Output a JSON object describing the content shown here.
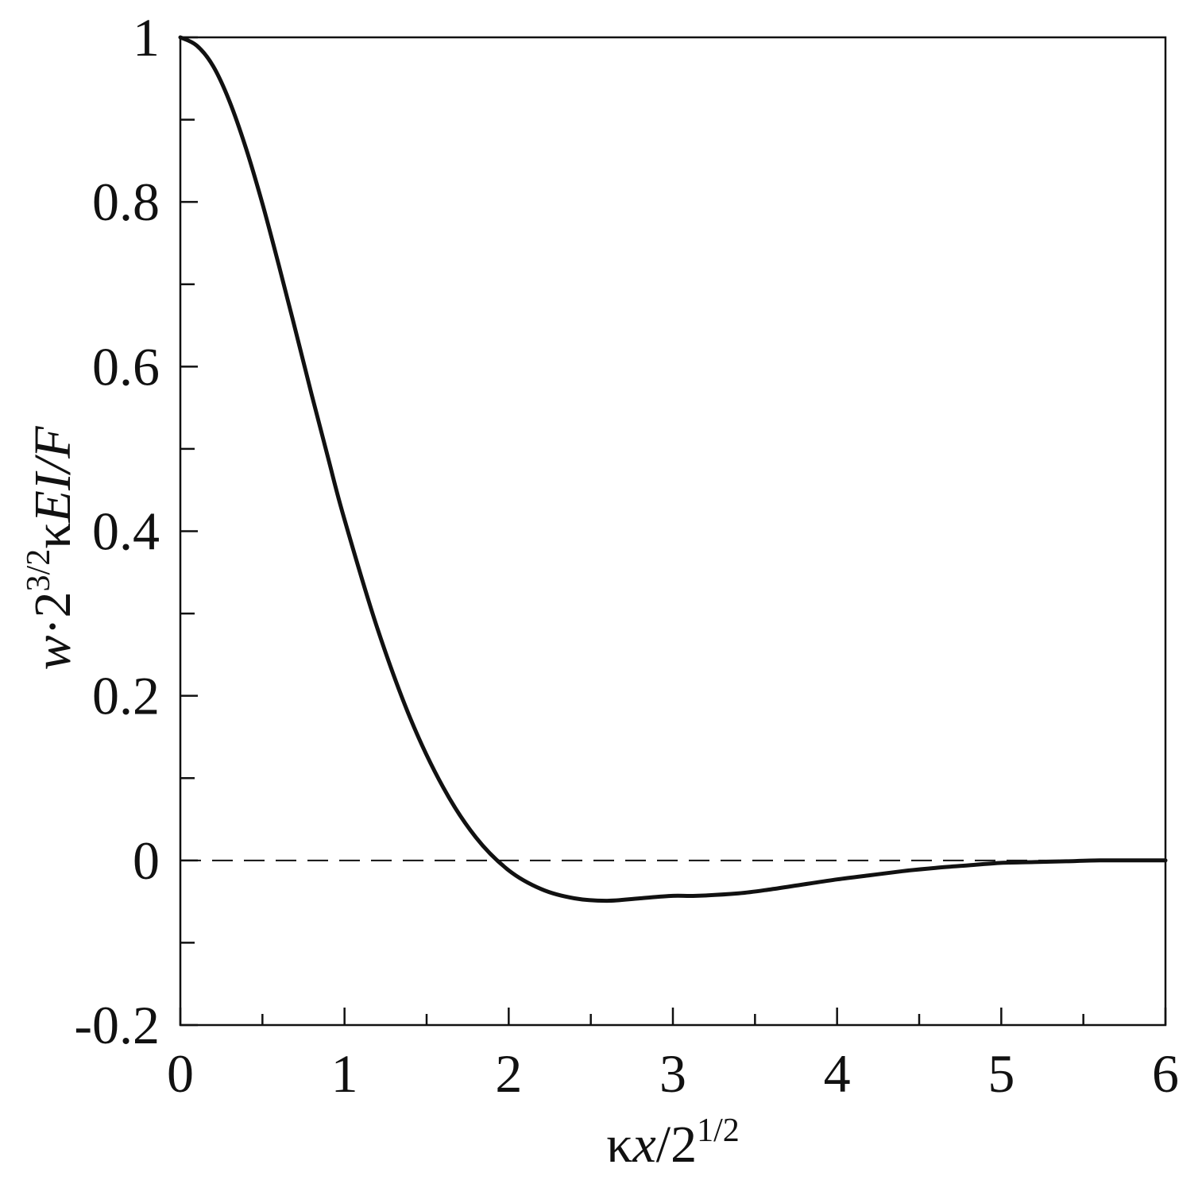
{
  "chart_data": {
    "type": "line",
    "title": "",
    "xlabel": {
      "prefix": "κ",
      "var": "x",
      "sep": "/2",
      "sup": "1/2"
    },
    "ylabel": {
      "var": "w",
      "mid": "·2",
      "sup": "3/2",
      "kappa": "κ",
      "tail": "EI/F"
    },
    "xlim": [
      0,
      6
    ],
    "ylim": [
      -0.2,
      1
    ],
    "x_ticks": [
      "0",
      "1",
      "2",
      "3",
      "4",
      "5",
      "6"
    ],
    "y_ticks": [
      "-0.2",
      "0",
      "0.2",
      "0.4",
      "0.6",
      "0.8",
      "1"
    ],
    "x_minor_step": 0.5,
    "y_minor_step": 0.1,
    "grid": false,
    "reference_line": {
      "y": 0,
      "style": "dashed"
    },
    "series": [
      {
        "x": [
          0,
          0.1,
          0.2,
          0.3,
          0.4,
          0.5,
          0.6,
          0.7,
          0.8,
          0.9,
          1.0,
          1.2,
          1.4,
          1.6,
          1.8,
          2.0,
          2.2,
          2.4,
          2.6,
          2.8,
          3.0,
          3.14,
          3.4,
          3.6,
          3.8,
          4.0,
          4.2,
          4.4,
          4.6,
          4.8,
          5.0,
          5.2,
          5.4,
          5.6,
          5.8,
          6.0
        ],
        "y": [
          1.0,
          0.99,
          0.965,
          0.922,
          0.865,
          0.798,
          0.723,
          0.645,
          0.566,
          0.489,
          0.414,
          0.282,
          0.173,
          0.089,
          0.028,
          -0.012,
          -0.035,
          -0.046,
          -0.049,
          -0.046,
          -0.043,
          -0.043,
          -0.04,
          -0.035,
          -0.029,
          -0.023,
          -0.018,
          -0.013,
          -0.009,
          -0.006,
          -0.003,
          -0.002,
          -0.001,
          0.0,
          0.0,
          0.0
        ]
      }
    ]
  }
}
